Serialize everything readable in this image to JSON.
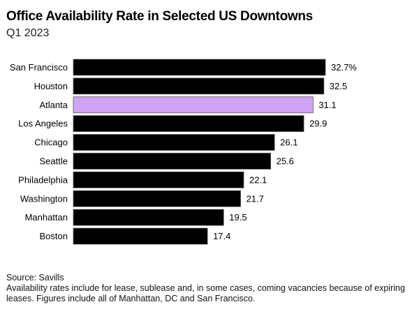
{
  "chart_data": {
    "type": "bar",
    "orientation": "horizontal",
    "title": "Office Availability Rate in Selected US Downtowns",
    "subtitle": "Q1 2023",
    "categories": [
      "San Francisco",
      "Houston",
      "Atlanta",
      "Los Angeles",
      "Chicago",
      "Seattle",
      "Philadelphia",
      "Washington",
      "Manhattan",
      "Boston"
    ],
    "values": [
      32.7,
      32.5,
      31.1,
      29.9,
      26.1,
      25.6,
      22.1,
      21.7,
      19.5,
      17.4
    ],
    "value_labels": [
      "32.7%",
      "32.5",
      "31.1",
      "29.9",
      "26.1",
      "25.6",
      "22.1",
      "21.7",
      "19.5",
      "17.4"
    ],
    "highlight": "Atlanta",
    "colors": {
      "default": "#000000",
      "highlight": "#d1a3f5"
    },
    "xlabel": "",
    "ylabel": "",
    "xlim": [
      0,
      32.7
    ]
  },
  "footer": {
    "source": "Source: Savills",
    "note_line1": "Availability rates include for lease, sublease and, in some cases, coming vacancies because of expiring",
    "note_line2": "leases. Figures include all of Manhattan, DC and San Francisco."
  }
}
